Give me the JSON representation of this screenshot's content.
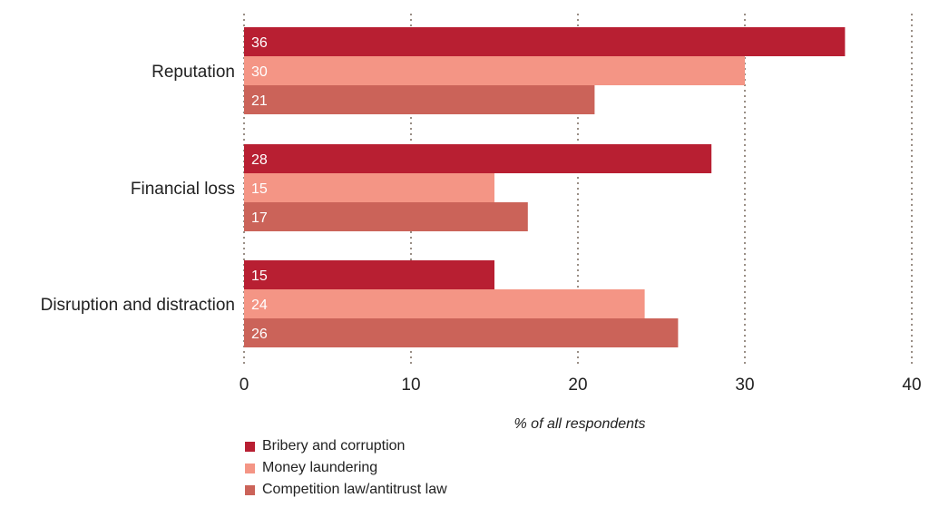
{
  "chart_data": {
    "type": "bar",
    "orientation": "horizontal",
    "categories": [
      "Reputation",
      "Financial loss",
      "Disruption and distraction"
    ],
    "series": [
      {
        "name": "Bribery and corruption",
        "color": "#b81f32",
        "values": [
          36,
          28,
          15
        ]
      },
      {
        "name": "Money laundering",
        "color": "#f49585",
        "values": [
          30,
          15,
          24
        ]
      },
      {
        "name": "Competition law/antitrust law",
        "color": "#cb6359",
        "values": [
          21,
          17,
          26
        ]
      }
    ],
    "xlabel": "% of all respondents",
    "ylabel": "",
    "xlim": [
      0,
      40
    ],
    "xticks": [
      "0",
      "10",
      "20",
      "30",
      "40"
    ],
    "grid": "vertical dotted",
    "legend_position": "bottom"
  }
}
